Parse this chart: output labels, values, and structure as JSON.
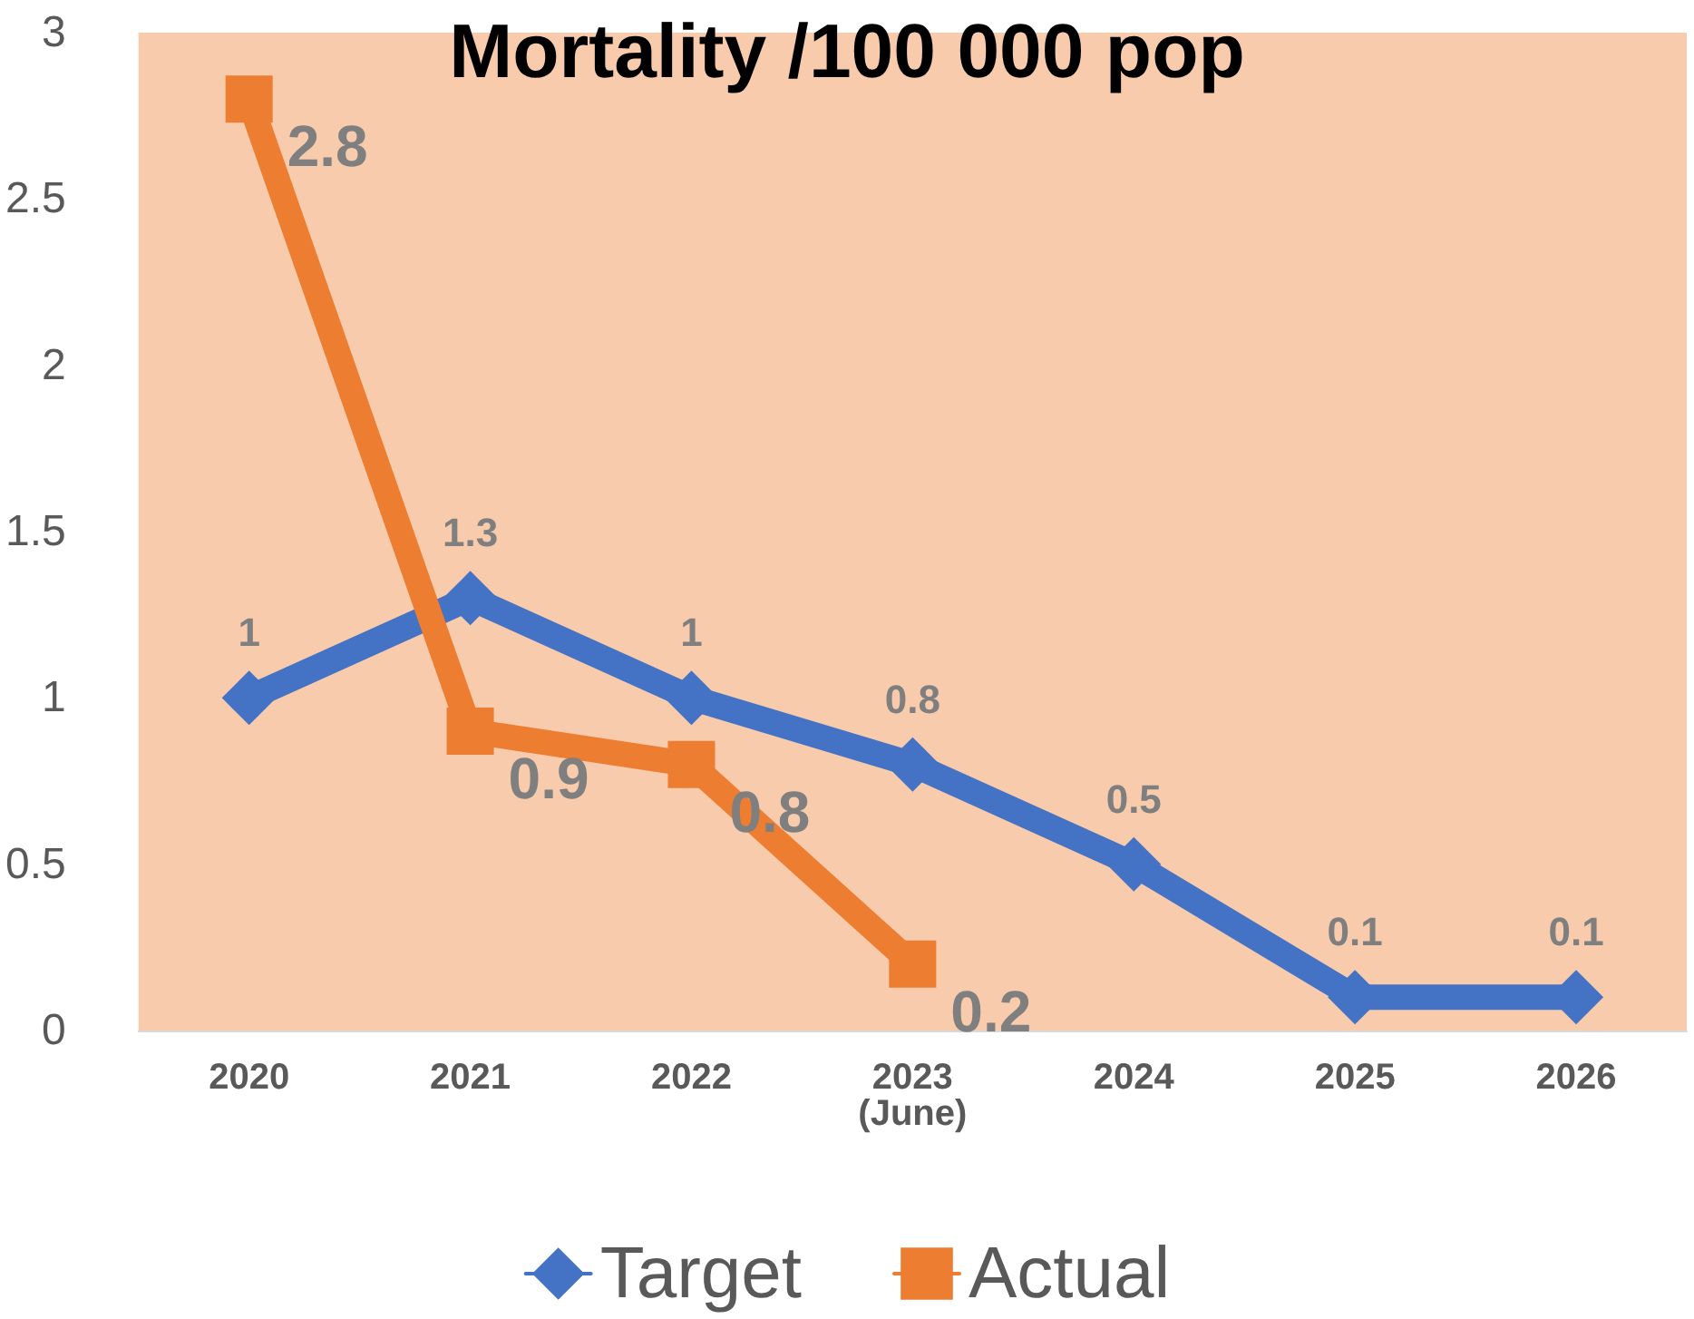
{
  "chart_data": {
    "type": "line",
    "title": "Mortality /100 000 pop",
    "categories": [
      "2020",
      "2021",
      "2022",
      "2023\n(June)",
      "2024",
      "2025",
      "2026"
    ],
    "series": [
      {
        "name": "Target",
        "color": "#4472c4",
        "marker": "diamond",
        "values": [
          1,
          1.3,
          1,
          0.8,
          0.5,
          0.1,
          0.1
        ]
      },
      {
        "name": "Actual",
        "color": "#ed7d31",
        "marker": "square",
        "values": [
          2.8,
          0.9,
          0.8,
          0.2,
          null,
          null,
          null
        ]
      }
    ],
    "ylim": [
      0,
      3
    ],
    "yticks": [
      0,
      0.5,
      1,
      1.5,
      2,
      2.5,
      3
    ],
    "grid": false,
    "legend": "bottom",
    "data_labels": true
  }
}
